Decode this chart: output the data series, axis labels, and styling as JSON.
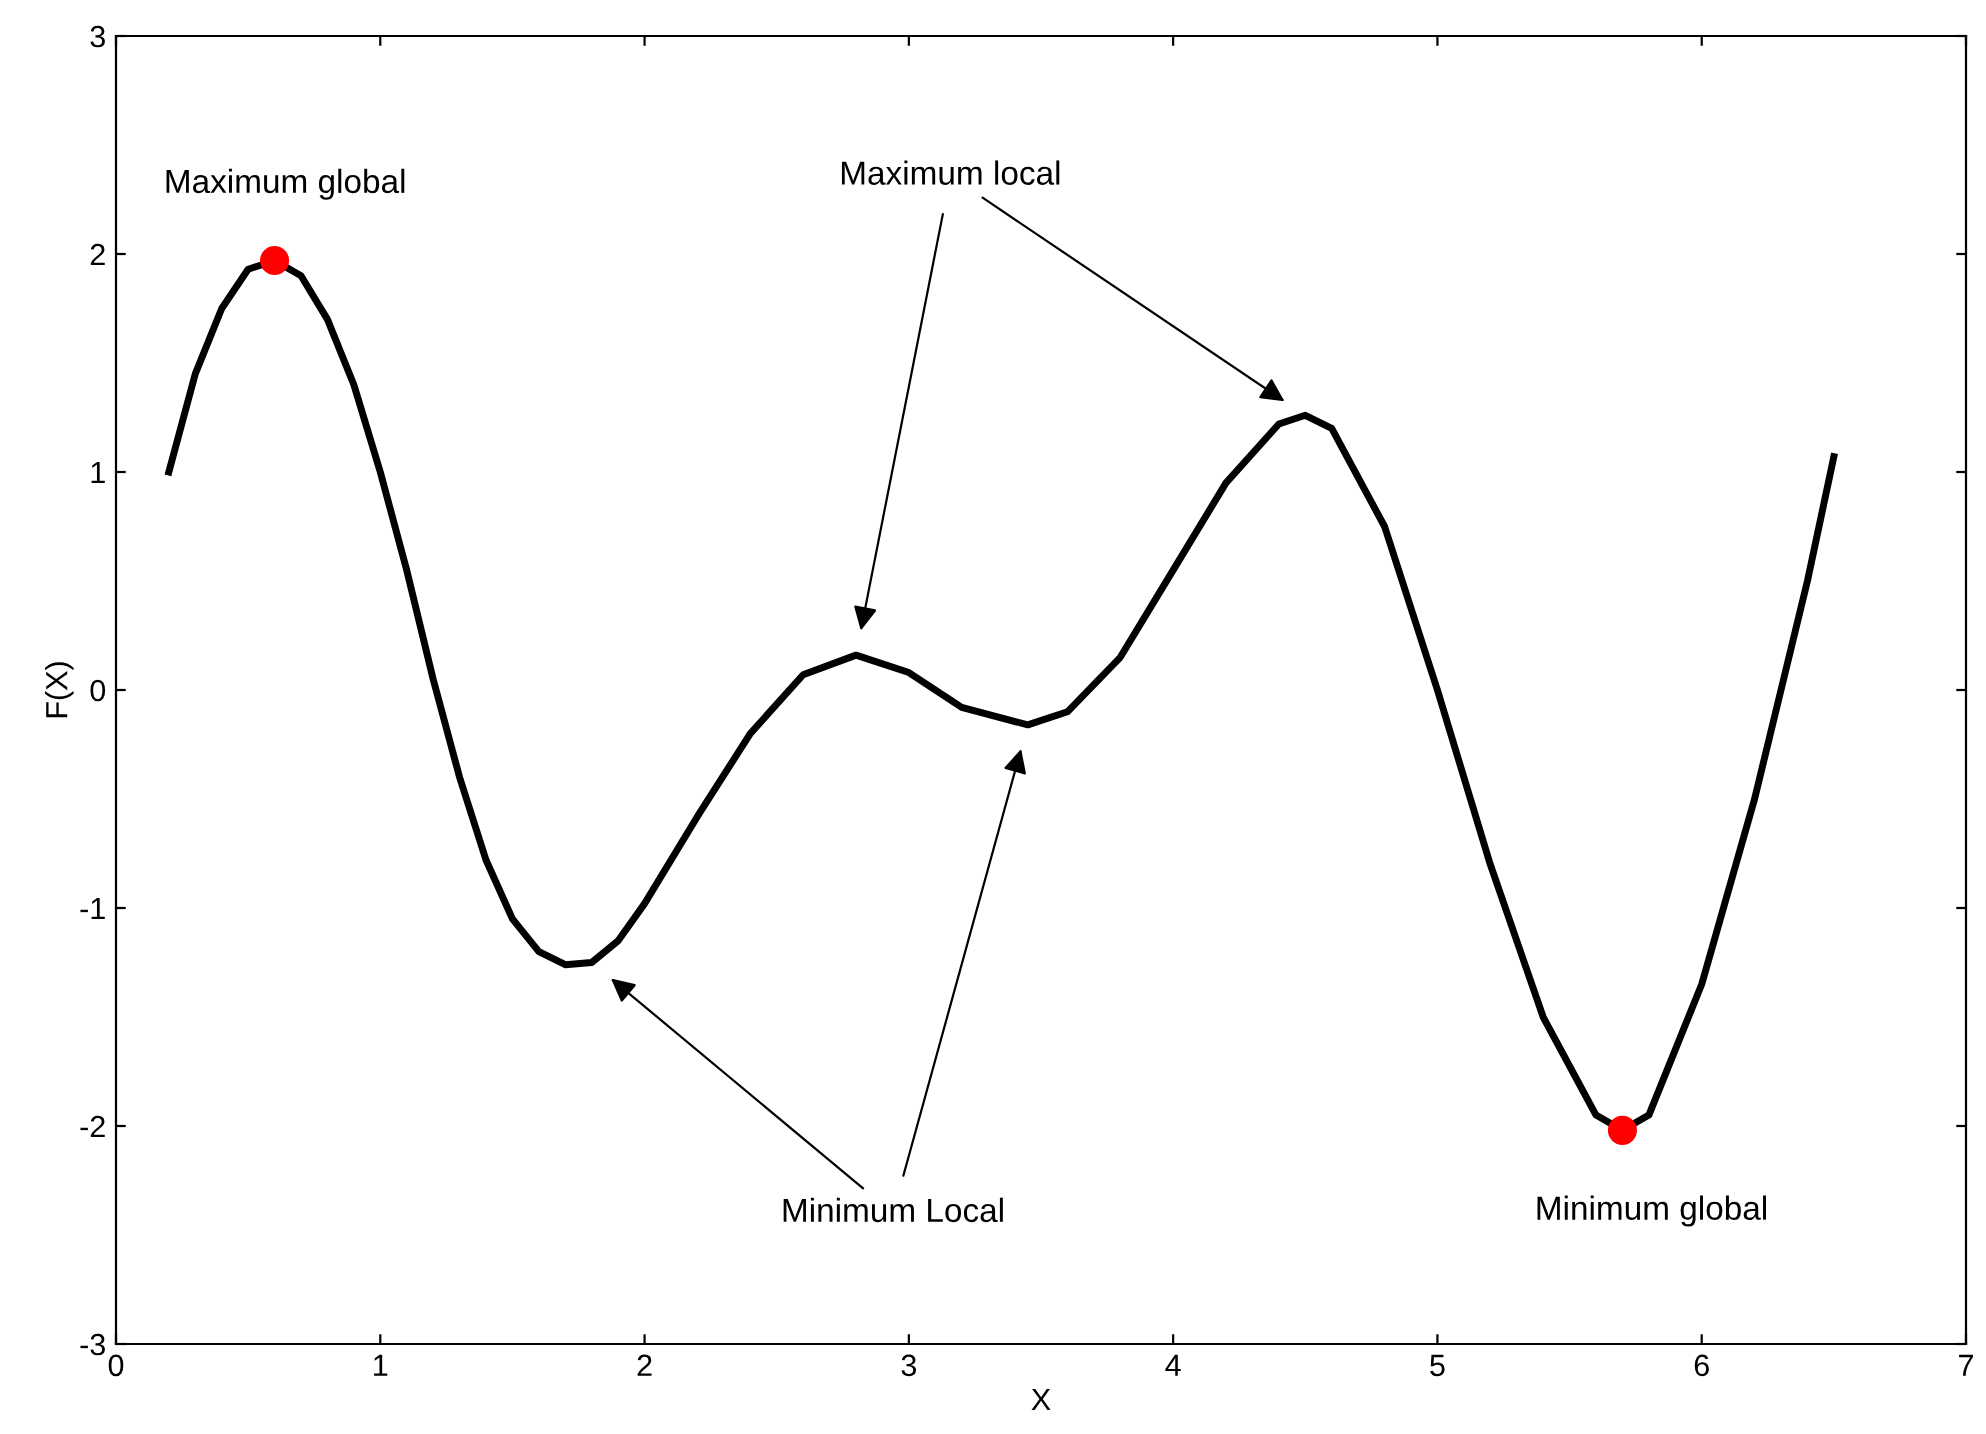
{
  "chart_data": {
    "type": "line",
    "xlabel": "X",
    "ylabel": "F(X)",
    "xlim": [
      0,
      7
    ],
    "ylim": [
      -3,
      3
    ],
    "xticks": [
      0,
      1,
      2,
      3,
      4,
      5,
      6,
      7
    ],
    "yticks": [
      -3,
      -2,
      -1,
      0,
      1,
      2,
      3
    ],
    "grid": false,
    "legend": false,
    "series": [
      {
        "color": "#000000",
        "marker": "none",
        "line_style": "solid",
        "x": [
          0.2,
          0.3,
          0.4,
          0.5,
          0.6,
          0.7,
          0.8,
          0.9,
          1.0,
          1.1,
          1.2,
          1.3,
          1.4,
          1.5,
          1.6,
          1.7,
          1.8,
          1.9,
          2.0,
          2.2,
          2.4,
          2.6,
          2.8,
          3.0,
          3.2,
          3.45,
          3.6,
          3.8,
          4.0,
          4.2,
          4.4,
          4.5,
          4.6,
          4.8,
          5.0,
          5.2,
          5.4,
          5.6,
          5.7,
          5.8,
          6.0,
          6.2,
          6.4,
          6.5
        ],
        "values": [
          1.0,
          1.45,
          1.75,
          1.93,
          1.97,
          1.9,
          1.7,
          1.4,
          1.0,
          0.55,
          0.05,
          -0.4,
          -0.78,
          -1.05,
          -1.2,
          -1.26,
          -1.25,
          -1.15,
          -0.98,
          -0.58,
          -0.2,
          0.07,
          0.16,
          0.08,
          -0.08,
          -0.16,
          -0.1,
          0.15,
          0.55,
          0.95,
          1.22,
          1.26,
          1.2,
          0.75,
          0.0,
          -0.8,
          -1.5,
          -1.95,
          -2.02,
          -1.95,
          -1.35,
          -0.5,
          0.5,
          1.07
        ]
      },
      {
        "type": "scatter",
        "color": "#ff0000",
        "marker": "circle",
        "x": [
          0.6,
          5.7
        ],
        "values": [
          1.97,
          -2.02
        ]
      }
    ],
    "annotations": [
      {
        "text": "Maximum global",
        "x": 0.6,
        "y": 1.97
      },
      "Maximum local",
      "Minimum Local",
      {
        "text": "Minimum global",
        "x": 5.7,
        "y": -2.02
      }
    ]
  }
}
